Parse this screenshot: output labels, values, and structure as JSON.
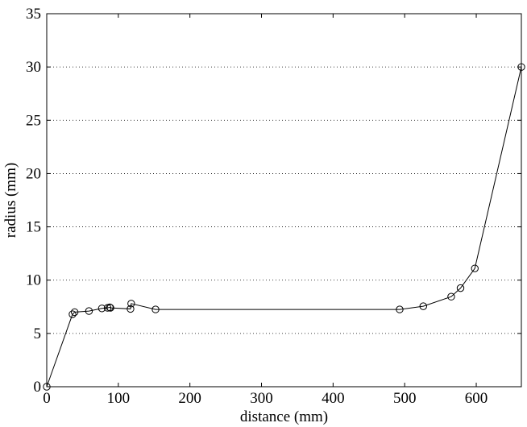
{
  "chart_data": {
    "type": "line",
    "title": "",
    "xlabel": "distance (mm)",
    "ylabel": "radius (mm)",
    "xlim": [
      0,
      663
    ],
    "ylim": [
      0,
      35
    ],
    "xticks": [
      0,
      100,
      200,
      300,
      400,
      500,
      600
    ],
    "yticks": [
      0,
      5,
      10,
      15,
      20,
      25,
      30,
      35
    ],
    "grid": "horizontal dotted",
    "line_color": "#000000",
    "marker": "circle",
    "series": [
      {
        "x": [
          0,
          36,
          39,
          59,
          77,
          85,
          88,
          89,
          117,
          118,
          152,
          493,
          526,
          565,
          578,
          598,
          663
        ],
        "y": [
          0,
          6.8,
          7.0,
          7.1,
          7.35,
          7.4,
          7.45,
          7.4,
          7.3,
          7.8,
          7.25,
          7.25,
          7.55,
          8.45,
          9.25,
          11.1,
          30
        ]
      }
    ]
  }
}
